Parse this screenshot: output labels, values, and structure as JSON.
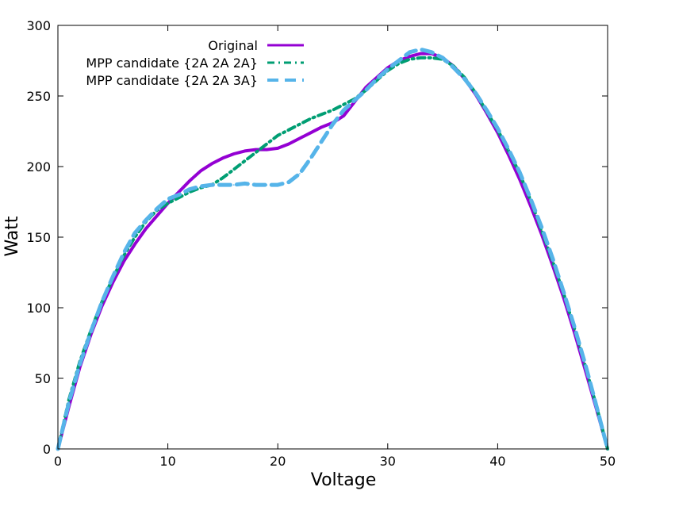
{
  "chart_data": {
    "type": "line",
    "title": "",
    "xlabel": "Voltage",
    "ylabel": "Watt",
    "xlim": [
      0,
      50
    ],
    "ylim": [
      0,
      300
    ],
    "xticks": [
      0,
      10,
      20,
      30,
      40,
      50
    ],
    "yticks": [
      0,
      50,
      100,
      150,
      200,
      250,
      300
    ],
    "grid": false,
    "legend_position": "top-left",
    "series": [
      {
        "name": "Original",
        "color": "#9400d3",
        "style": "solid",
        "x": [
          0,
          1,
          2,
          3,
          4,
          5,
          6,
          7,
          8,
          9,
          10,
          11,
          12,
          13,
          14,
          15,
          16,
          17,
          18,
          19,
          20,
          21,
          22,
          23,
          24,
          25,
          26,
          27,
          28,
          29,
          30,
          31,
          32,
          33,
          34,
          35,
          36,
          37,
          38,
          39,
          40,
          41,
          42,
          43,
          44,
          45,
          46,
          47,
          48,
          49,
          50
        ],
        "y": [
          0,
          30,
          58,
          81,
          101,
          118,
          133,
          145,
          156,
          165,
          174,
          182,
          190,
          197,
          202,
          206,
          209,
          211,
          212,
          212,
          213,
          216,
          220,
          224,
          228,
          231,
          236,
          246,
          256,
          263,
          270,
          275,
          278,
          280,
          280,
          277,
          271,
          262,
          251,
          238,
          224,
          208,
          191,
          172,
          152,
          130,
          107,
          82,
          55,
          28,
          0
        ]
      },
      {
        "name": "MPP candidate {2A 2A 2A}",
        "color": "#009e73",
        "style": "dash-dot",
        "x": [
          0,
          1,
          2,
          3,
          4,
          5,
          6,
          7,
          8,
          9,
          10,
          11,
          12,
          13,
          14,
          15,
          16,
          17,
          18,
          19,
          20,
          21,
          22,
          23,
          24,
          25,
          26,
          27,
          28,
          29,
          30,
          31,
          32,
          33,
          34,
          35,
          36,
          37,
          38,
          39,
          40,
          41,
          42,
          43,
          44,
          45,
          46,
          47,
          48,
          49,
          50
        ],
        "y": [
          0,
          35,
          62,
          84,
          104,
          121,
          137,
          150,
          161,
          169,
          174,
          178,
          182,
          185,
          187,
          192,
          198,
          204,
          210,
          216,
          222,
          226,
          230,
          234,
          237,
          240,
          244,
          248,
          254,
          261,
          268,
          273,
          276,
          277,
          277,
          276,
          271,
          263,
          252,
          239,
          226,
          211,
          195,
          176,
          155,
          133,
          110,
          85,
          58,
          30,
          0
        ]
      },
      {
        "name": "MPP candidate {2A 2A 3A}",
        "color": "#56b4e9",
        "style": "dashed",
        "x": [
          0,
          1,
          2,
          3,
          4,
          5,
          6,
          7,
          8,
          9,
          10,
          11,
          12,
          13,
          14,
          15,
          16,
          17,
          18,
          19,
          20,
          21,
          22,
          23,
          24,
          25,
          26,
          27,
          28,
          29,
          30,
          31,
          32,
          33,
          34,
          35,
          36,
          37,
          38,
          39,
          40,
          41,
          42,
          43,
          44,
          45,
          46,
          47,
          48,
          49,
          50
        ],
        "y": [
          0,
          33,
          60,
          83,
          104,
          122,
          139,
          153,
          162,
          170,
          177,
          180,
          184,
          186,
          187,
          187,
          187,
          188,
          187,
          187,
          187,
          189,
          195,
          206,
          218,
          230,
          240,
          247,
          254,
          262,
          269,
          275,
          281,
          283,
          281,
          277,
          270,
          262,
          252,
          240,
          227,
          212,
          196,
          177,
          157,
          135,
          111,
          86,
          59,
          30,
          0
        ]
      }
    ]
  }
}
